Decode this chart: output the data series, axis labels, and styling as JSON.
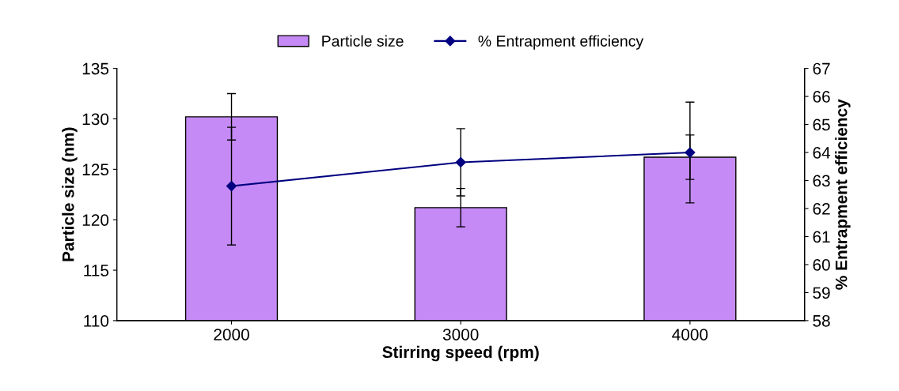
{
  "chart_data": {
    "type": "bar",
    "xlabel": "Stirring speed (rpm)",
    "ylabel": "Particle size (nm)",
    "y2label": "% Entrapment efficiency",
    "categories": [
      "2000",
      "3000",
      "4000"
    ],
    "series": [
      {
        "name": "Particle size",
        "color": "#c58af5",
        "values": [
          130.2,
          121.2,
          126.2
        ],
        "errors": [
          2.3,
          1.9,
          2.2
        ]
      },
      {
        "name": "% Entrapment efficiency",
        "type": "line",
        "axis": "y2",
        "color": "#000080",
        "values": [
          62.8,
          63.65,
          64.0
        ],
        "errors": [
          2.1,
          1.2,
          1.8
        ]
      }
    ],
    "ylim": [
      110,
      135
    ],
    "yticks": [
      110,
      115,
      120,
      125,
      130,
      135
    ],
    "y2lim": [
      58,
      67
    ],
    "y2ticks": [
      58,
      59,
      60,
      61,
      62,
      63,
      64,
      65,
      66,
      67
    ],
    "legend": "top",
    "grid": false,
    "marker": "diamond",
    "line_style": "solid"
  }
}
